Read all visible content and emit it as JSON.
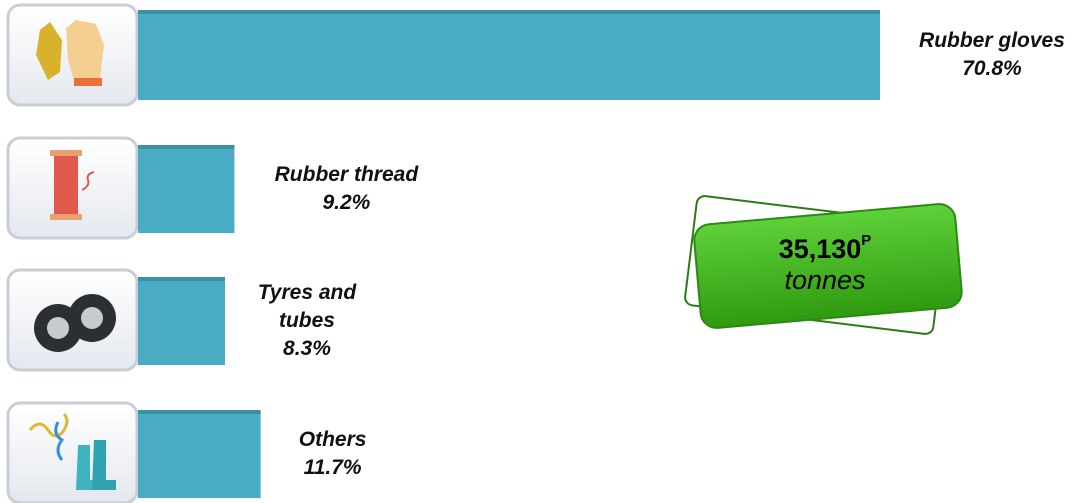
{
  "chart_data": {
    "type": "bar",
    "orientation": "horizontal",
    "categories": [
      "Rubber gloves",
      "Rubber thread",
      "Tyres and tubes",
      "Others"
    ],
    "values": [
      70.8,
      9.2,
      8.3,
      11.7
    ],
    "value_labels": [
      "70.8%",
      "9.2%",
      "8.3%",
      "11.7%"
    ],
    "color": "#4aabc4",
    "annotation": {
      "value": "35,130",
      "superscript": "P",
      "unit": "tonnes"
    }
  }
}
